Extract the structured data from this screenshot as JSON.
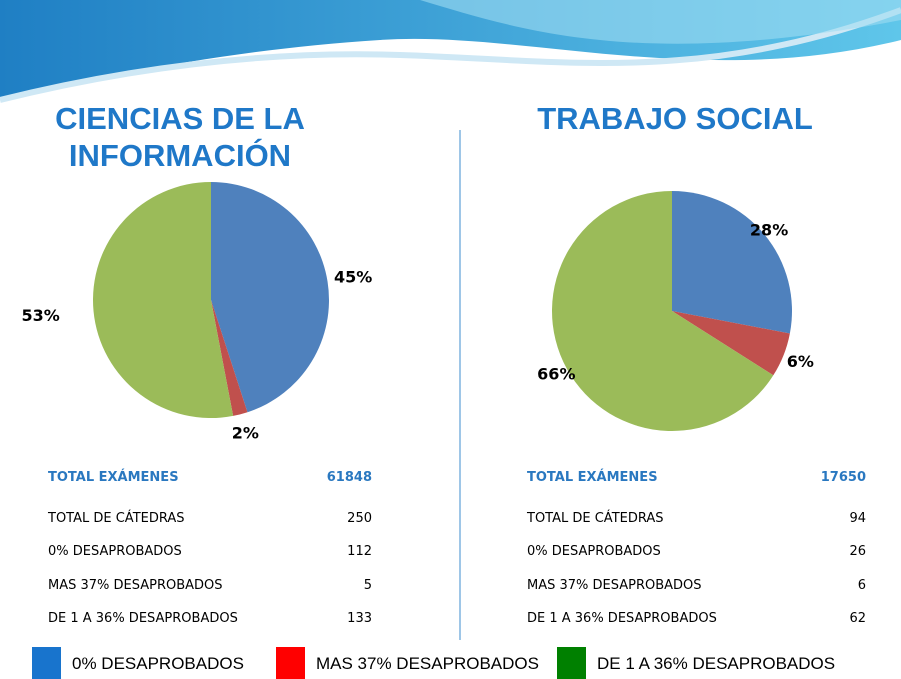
{
  "chart_data": [
    {
      "type": "pie",
      "title": "CIENCIAS DE LA INFORMACIÓN",
      "values": [
        45,
        2,
        53
      ],
      "value_labels": [
        "45%",
        "2%",
        "53%"
      ],
      "colors": [
        "#4f81bd",
        "#c0504d",
        "#9bbb59"
      ]
    },
    {
      "type": "pie",
      "title": "TRABAJO SOCIAL",
      "values": [
        28,
        6,
        66
      ],
      "value_labels": [
        "28%",
        "6%",
        "66%"
      ],
      "colors": [
        "#4f81bd",
        "#c0504d",
        "#9bbb59"
      ]
    }
  ],
  "tables": [
    {
      "header": [
        "TOTAL EXÁMENES",
        61848
      ],
      "rows": [
        [
          "TOTAL DE CÁTEDRAS",
          250
        ],
        [
          "0% DESAPROBADOS",
          112
        ],
        [
          "MAS 37% DESAPROBADOS",
          5
        ],
        [
          "DE 1 A 36% DESAPROBADOS",
          133
        ]
      ]
    },
    {
      "header": [
        "TOTAL EXÁMENES",
        17650
      ],
      "rows": [
        [
          "TOTAL DE CÁTEDRAS",
          94
        ],
        [
          "0% DESAPROBADOS",
          26
        ],
        [
          "MAS 37% DESAPROBADOS",
          6
        ],
        [
          "DE 1 A 36% DESAPROBADOS",
          62
        ]
      ]
    }
  ],
  "legend": [
    {
      "label": "0% DESAPROBADOS",
      "color": "#1874cd"
    },
    {
      "label": "MAS 37% DESAPROBADOS",
      "color": "#ff0000"
    },
    {
      "label": "DE 1 A 36% DESAPROBADOS",
      "color": "#008000"
    }
  ]
}
